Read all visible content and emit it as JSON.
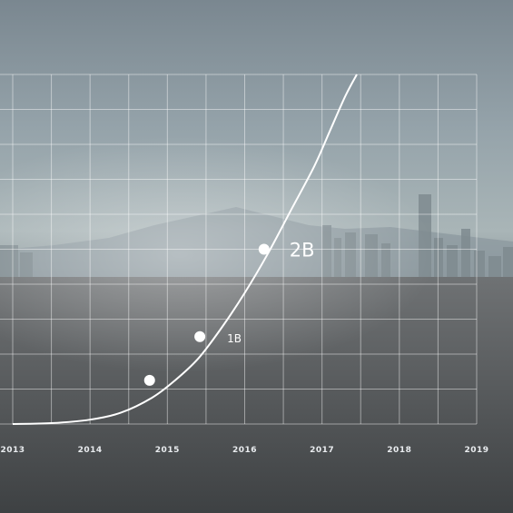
{
  "chart_data": {
    "type": "line",
    "title": "",
    "xlabel": "",
    "ylabel": "",
    "x_ticks": [
      "2013",
      "2014",
      "2015",
      "2016",
      "2017",
      "2018",
      "2019"
    ],
    "xlim": [
      2013,
      2019
    ],
    "ylim": [
      0,
      4
    ],
    "grid": true,
    "legend": "none",
    "series": [
      {
        "x": [
          2013.0,
          2013.5,
          2014.0,
          2014.4,
          2014.8,
          2015.1,
          2015.4,
          2015.7,
          2016.0,
          2016.3,
          2016.6,
          2016.9,
          2017.1,
          2017.3,
          2017.45
        ],
        "y": [
          0.0,
          0.01,
          0.05,
          0.13,
          0.3,
          0.5,
          0.75,
          1.1,
          1.5,
          1.95,
          2.45,
          2.95,
          3.35,
          3.75,
          4.0
        ]
      }
    ],
    "highlight_points": [
      {
        "x": 2014.77,
        "y": 0.5,
        "label": ""
      },
      {
        "x": 2015.42,
        "y": 1.0,
        "label": "1B"
      },
      {
        "x": 2016.25,
        "y": 2.0,
        "label": "2B"
      }
    ],
    "colors": {
      "line": "#ffffff",
      "grid": "#ffffff",
      "tick_text": "#e9ecef"
    }
  }
}
